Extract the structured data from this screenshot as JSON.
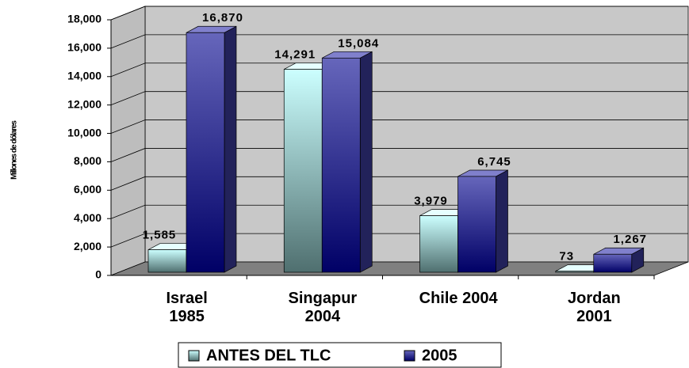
{
  "chart_data": {
    "type": "bar3d",
    "y_label": "Millones de dólares",
    "categories": [
      "Israel\n1985",
      "Singapur\n2004",
      "Chile 2004",
      "Jordan\n2001"
    ],
    "series": [
      {
        "name": "ANTES DEL TLC",
        "color": "#ccffff",
        "values": [
          1585,
          14291,
          3979,
          73
        ],
        "value_labels": [
          "1,585",
          "14,291",
          "3,979",
          "73"
        ]
      },
      {
        "name": "2005",
        "color": "#6666bb",
        "values": [
          16870,
          15084,
          6745,
          1267
        ],
        "value_labels": [
          "16,870",
          "15,084",
          "6,745",
          "1,267"
        ]
      }
    ],
    "ylim": [
      0,
      18000
    ],
    "yticks": [
      0,
      {
        "value": 2000,
        "label": "2,000"
      },
      {
        "value": 4000,
        "label": "4,000"
      },
      {
        "value": 6000,
        "label": "6,000"
      },
      {
        "value": 8000,
        "label": "8,000"
      },
      {
        "value": 10000,
        "label": "10,000"
      },
      {
        "value": 12000,
        "label": "12,000"
      },
      {
        "value": 14000,
        "label": "14,000"
      },
      {
        "value": 16000,
        "label": "16,000"
      },
      {
        "value": 18000,
        "label": "18,000"
      }
    ],
    "grid": true,
    "legend": "bottom"
  }
}
